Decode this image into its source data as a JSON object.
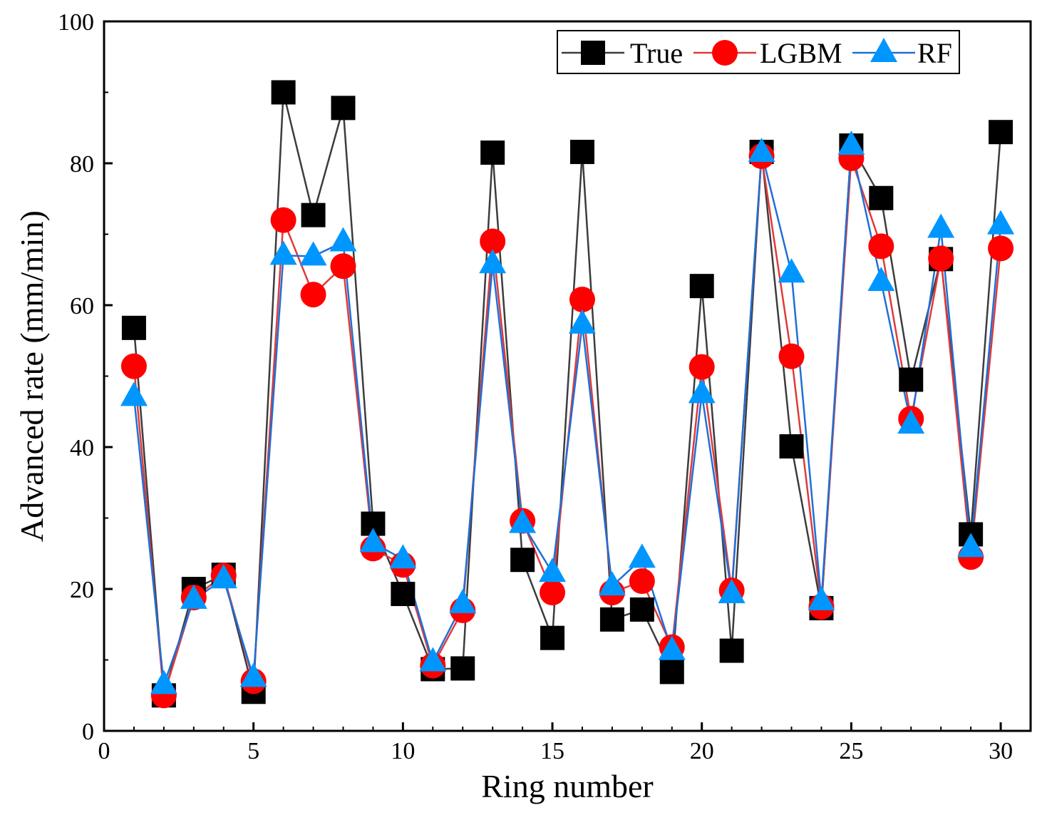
{
  "chart_data": {
    "type": "line",
    "title": "",
    "xlabel": "Ring number",
    "ylabel": "Advanced rate (mm/min)",
    "xlim": [
      0,
      31
    ],
    "ylim": [
      0,
      100
    ],
    "xticks": [
      0,
      5,
      10,
      15,
      20,
      25,
      30
    ],
    "yticks": [
      0,
      20,
      40,
      60,
      80,
      100
    ],
    "legend_position": "top-right",
    "x": [
      1,
      2,
      3,
      4,
      5,
      6,
      7,
      8,
      9,
      10,
      11,
      12,
      13,
      14,
      15,
      16,
      17,
      18,
      19,
      20,
      21,
      22,
      23,
      24,
      25,
      26,
      27,
      28,
      29,
      30
    ],
    "series": [
      {
        "name": "True",
        "marker": "square",
        "color": "#000000",
        "line_color": "#3c3c3c",
        "values": [
          56.8,
          5.0,
          20.0,
          22.0,
          5.5,
          90.0,
          72.7,
          87.8,
          29.2,
          19.3,
          8.7,
          8.8,
          81.5,
          24.1,
          13.1,
          81.6,
          15.7,
          17.1,
          8.3,
          62.7,
          11.3,
          81.6,
          40.1,
          17.3,
          82.5,
          75.1,
          49.5,
          66.5,
          27.7,
          84.4
        ]
      },
      {
        "name": "LGBM",
        "marker": "circle",
        "color": "#ff0000",
        "line_color": "#e03a3a",
        "values": [
          51.4,
          5.0,
          18.8,
          21.9,
          7.0,
          72.0,
          61.5,
          65.5,
          25.7,
          23.4,
          9.2,
          17.0,
          69.0,
          29.6,
          19.5,
          60.8,
          19.5,
          21.1,
          11.8,
          51.3,
          19.8,
          81.0,
          52.8,
          17.5,
          80.7,
          68.3,
          44.0,
          66.6,
          24.5,
          68.0
        ]
      },
      {
        "name": "RF",
        "marker": "triangle",
        "color": "#0096ff",
        "line_color": "#1f6fd6",
        "values": [
          47.1,
          6.5,
          18.5,
          21.4,
          7.5,
          67.0,
          66.9,
          68.9,
          26.5,
          24.2,
          9.7,
          17.9,
          65.8,
          29.2,
          22.3,
          57.3,
          20.4,
          24.3,
          11.3,
          47.5,
          19.3,
          81.5,
          64.5,
          18.3,
          82.5,
          63.3,
          43.2,
          70.8,
          25.8,
          71.3
        ]
      }
    ]
  }
}
